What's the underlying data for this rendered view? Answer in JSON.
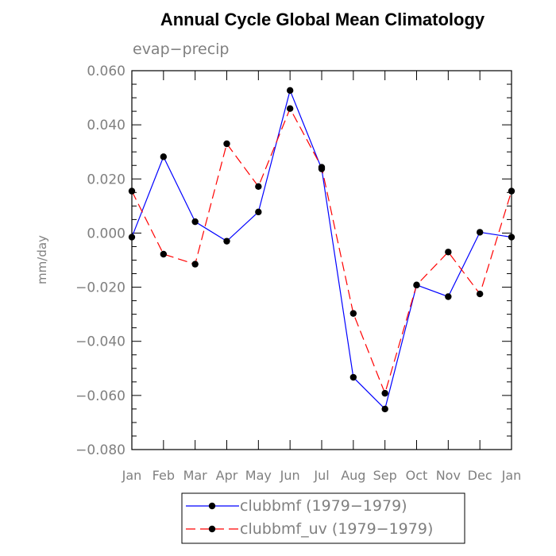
{
  "chart_data": {
    "type": "line",
    "title": "Annual Cycle Global Mean Climatology",
    "subtitle": "evap−precip",
    "xlabel": "",
    "ylabel": "mm/day",
    "categories": [
      "Jan",
      "Feb",
      "Mar",
      "Apr",
      "May",
      "Jun",
      "Jul",
      "Aug",
      "Sep",
      "Oct",
      "Nov",
      "Dec",
      "Jan"
    ],
    "ylim": [
      -0.08,
      0.06
    ],
    "yticks": [
      0.06,
      0.04,
      0.02,
      0.0,
      -0.02,
      -0.04,
      -0.06,
      -0.08
    ],
    "ytick_labels": [
      "0.060",
      "0.040",
      "0.020",
      "0.000",
      "−0.020",
      "−0.040",
      "−0.060",
      "−0.080"
    ],
    "legend_position": "bottom",
    "series": [
      {
        "name": "clubbmf (1979−1979)",
        "color": "#0000ff",
        "dash": "solid",
        "values": [
          -0.0015,
          0.0282,
          0.0042,
          -0.003,
          0.0078,
          0.0527,
          0.0237,
          -0.0533,
          -0.065,
          -0.0192,
          -0.0235,
          0.0003,
          -0.0015
        ]
      },
      {
        "name": "clubbmf_uv (1979−1979)",
        "color": "#ff0000",
        "dash": "dashed",
        "values": [
          0.0155,
          -0.0078,
          -0.0115,
          0.033,
          0.0172,
          0.046,
          0.0243,
          -0.0297,
          -0.0592,
          -0.0192,
          -0.007,
          -0.0225,
          0.0155
        ]
      }
    ]
  }
}
